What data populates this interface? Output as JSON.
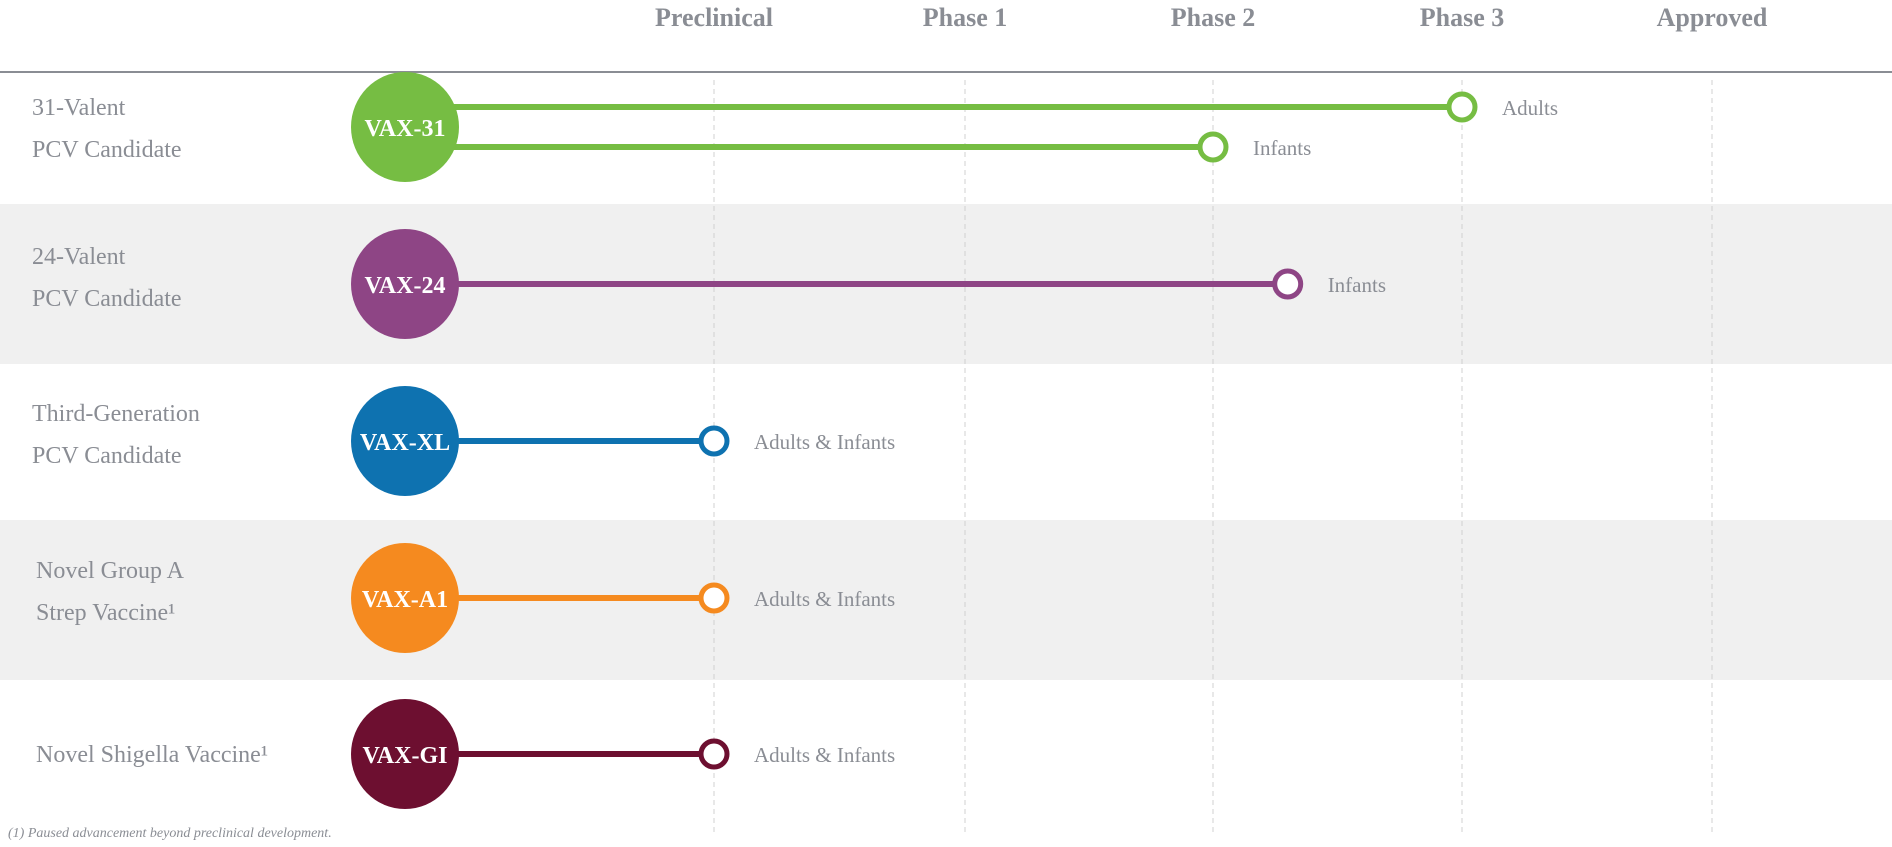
{
  "stages": [
    "Preclinical",
    "Phase 1",
    "Phase 2",
    "Phase 3",
    "Approved"
  ],
  "programs": [
    {
      "name_lines": [
        "31-Valent",
        "PCV Candidate"
      ],
      "code": "VAX-31",
      "color": "#76bd43",
      "tracks": [
        {
          "label": "Adults",
          "progress_stage": 3
        },
        {
          "label": "Infants",
          "progress_stage": 2
        }
      ]
    },
    {
      "name_lines": [
        "24-Valent",
        "PCV Candidate"
      ],
      "code": "VAX-24",
      "color": "#8e4585",
      "tracks": [
        {
          "label": "Infants",
          "progress_stage": 2.3
        }
      ]
    },
    {
      "name_lines": [
        "Third-Generation",
        "PCV Candidate"
      ],
      "code": "VAX-XL",
      "color": "#0e72b0",
      "tracks": [
        {
          "label": "Adults & Infants",
          "progress_stage": 0
        }
      ]
    },
    {
      "name_lines": [
        "Novel Group A",
        "Strep Vaccine¹"
      ],
      "code": "VAX-A1",
      "color": "#f58a1f",
      "tracks": [
        {
          "label": "Adults & Infants",
          "progress_stage": 0
        }
      ]
    },
    {
      "name_lines": [
        "Novel Shigella Vaccine¹"
      ],
      "code": "VAX-GI",
      "color": "#6d0f30",
      "tracks": [
        {
          "label": "Adults & Infants",
          "progress_stage": 0
        }
      ]
    }
  ],
  "footnote": "(1) Paused advancement beyond preclinical development."
}
